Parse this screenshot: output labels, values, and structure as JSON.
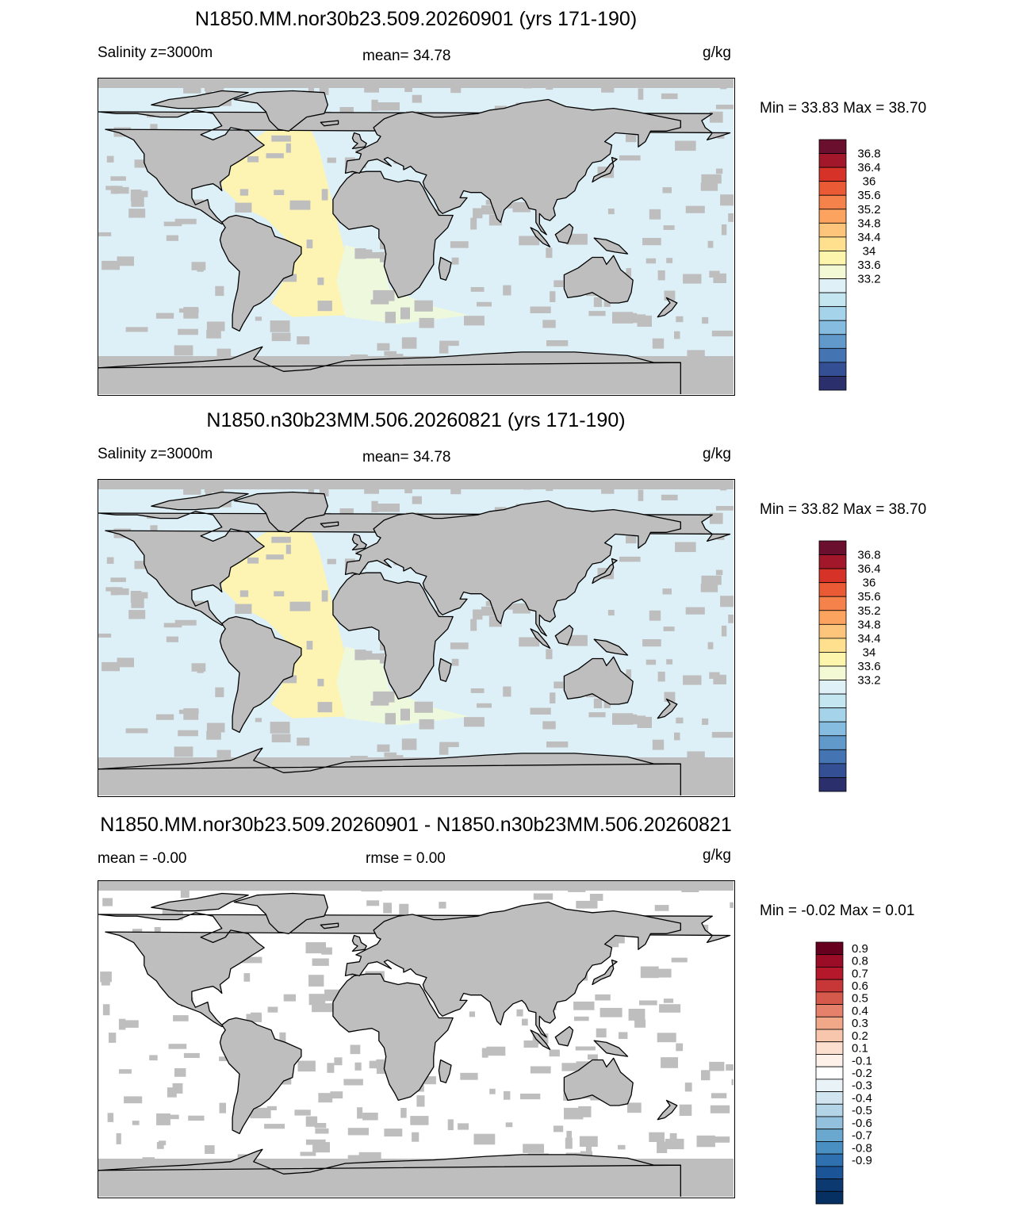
{
  "colors": {
    "land": "#bebebe",
    "ocean_fresh": "#ddf0f7",
    "ocean_salty": "#fdf4b3",
    "ocean_mid": "#eef8dd",
    "diff_ocean": "#ffffff"
  },
  "panels": [
    {
      "title": "N1850.MM.nor30b23.509.20260901 (yrs 171-190)",
      "left_label": "Salinity z=3000m",
      "center_label": "mean=  34.78",
      "units": "g/kg",
      "minmax": "Min =  33.83 Max =  38.70",
      "kind": "salinity",
      "colorbar": {
        "colors": [
          "#6a0f2e",
          "#a3172a",
          "#d63227",
          "#ea5a35",
          "#f5824a",
          "#fba35f",
          "#fdc47b",
          "#fee08f",
          "#fef5ad",
          "#f2f9d4",
          "#dff1f6",
          "#c3e6f1",
          "#a5d4ea",
          "#85bcdf",
          "#6299cb",
          "#4574b3",
          "#354f95",
          "#2b2f6b"
        ],
        "labels": [
          "36.8",
          "36.4",
          "36",
          "35.6",
          "35.2",
          "34.8",
          "34.4",
          "34",
          "33.6",
          "33.2"
        ]
      }
    },
    {
      "title": "N1850.n30b23MM.506.20260821 (yrs 171-190)",
      "left_label": "Salinity z=3000m",
      "center_label": "mean=  34.78",
      "units": "g/kg",
      "minmax": "Min =  33.82 Max =  38.70",
      "kind": "salinity",
      "colorbar": {
        "colors": [
          "#6a0f2e",
          "#a3172a",
          "#d63227",
          "#ea5a35",
          "#f5824a",
          "#fba35f",
          "#fdc47b",
          "#fee08f",
          "#fef5ad",
          "#f2f9d4",
          "#dff1f6",
          "#c3e6f1",
          "#a5d4ea",
          "#85bcdf",
          "#6299cb",
          "#4574b3",
          "#354f95",
          "#2b2f6b"
        ],
        "labels": [
          "36.8",
          "36.4",
          "36",
          "35.6",
          "35.2",
          "34.8",
          "34.4",
          "34",
          "33.6",
          "33.2"
        ]
      }
    },
    {
      "title": "N1850.MM.nor30b23.509.20260901 - N1850.n30b23MM.506.20260821",
      "left_label": "mean =  -0.00",
      "center_label": "rmse =   0.00",
      "units": "g/kg",
      "minmax": "Min =  -0.02 Max =   0.01",
      "kind": "diff",
      "colorbar": {
        "colors": [
          "#67001f",
          "#9b0d27",
          "#b5182b",
          "#c73737",
          "#d65a4b",
          "#e5806a",
          "#f1a889",
          "#f8c6ad",
          "#fcdfcf",
          "#fdf1e9",
          "#ffffff",
          "#e9f2f7",
          "#d1e5f0",
          "#b3d5e7",
          "#92c0dd",
          "#6aa8cf",
          "#4a8fc1",
          "#2f70b0",
          "#1b5597",
          "#0c3a70",
          "#053061"
        ],
        "labels": [
          "0.9",
          "0.8",
          "0.7",
          "0.6",
          "0.5",
          "0.4",
          "0.3",
          "0.2",
          "0.1",
          "-0.1",
          "-0.2",
          "-0.3",
          "-0.4",
          "-0.5",
          "-0.6",
          "-0.7",
          "-0.8",
          "-0.9"
        ]
      }
    }
  ]
}
